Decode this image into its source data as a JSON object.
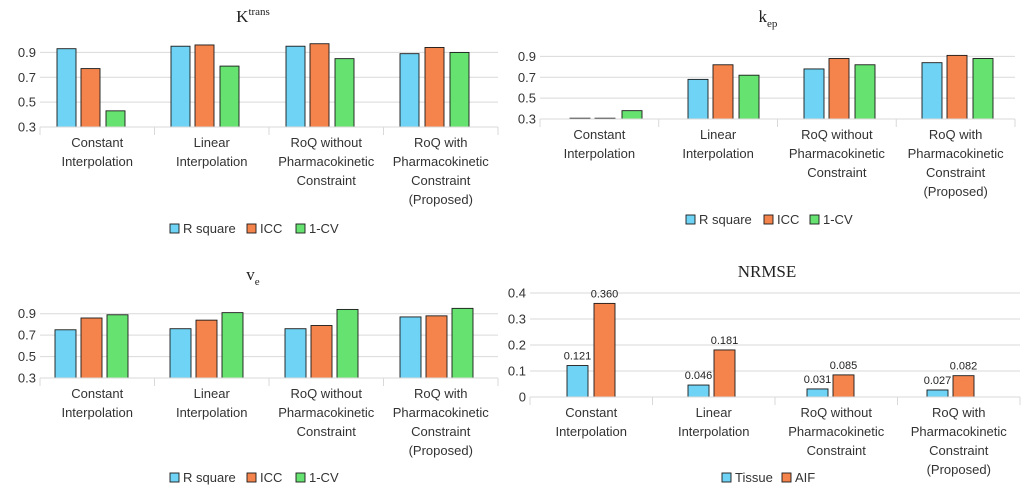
{
  "chart_data": [
    {
      "type": "bar",
      "title": "K",
      "title_sup": "trans",
      "title_sub": "",
      "categories": [
        [
          "Constant",
          "Interpolation"
        ],
        [
          "Linear",
          "Interpolation"
        ],
        [
          "RoQ without",
          "Pharmacokinetic",
          "Constraint"
        ],
        [
          "RoQ with",
          "Pharmacokinetic",
          "Constraint",
          "(Proposed)"
        ]
      ],
      "series": [
        {
          "name": "R square",
          "color": "#6ED3F5",
          "values": [
            0.93,
            0.95,
            0.95,
            0.89
          ]
        },
        {
          "name": "ICC",
          "color": "#F5844C",
          "values": [
            0.77,
            0.96,
            0.97,
            0.94
          ]
        },
        {
          "name": "1-CV",
          "color": "#66E270",
          "values": [
            0.43,
            0.79,
            0.85,
            0.9
          ]
        }
      ],
      "ylim": [
        0.3,
        1.0
      ],
      "yticks": [
        "0.9",
        "0.7",
        "0.5",
        "0.3"
      ],
      "ytick_values": [
        0.9,
        0.7,
        0.5,
        0.3
      ],
      "grid": true,
      "legend": "bottom"
    },
    {
      "type": "bar",
      "title": "k",
      "title_sup": "",
      "title_sub": "ep",
      "categories": [
        [
          "Constant",
          "Interpolation"
        ],
        [
          "Linear",
          "Interpolation"
        ],
        [
          "RoQ without",
          "Pharmacokinetic",
          "Constraint"
        ],
        [
          "RoQ with",
          "Pharmacokinetic",
          "Constraint",
          "(Proposed)"
        ]
      ],
      "series": [
        {
          "name": "R square",
          "color": "#6ED3F5",
          "values": [
            0.3,
            0.68,
            0.78,
            0.84
          ]
        },
        {
          "name": "ICC",
          "color": "#F5844C",
          "values": [
            0.3,
            0.82,
            0.88,
            0.91
          ]
        },
        {
          "name": "1-CV",
          "color": "#66E270",
          "values": [
            0.38,
            0.72,
            0.82,
            0.88
          ]
        }
      ],
      "ylim": [
        0.3,
        1.0
      ],
      "yticks": [
        "0.9",
        "0.7",
        "0.5",
        "0.3"
      ],
      "ytick_values": [
        0.9,
        0.7,
        0.5,
        0.3
      ],
      "grid": true,
      "legend": "bottom"
    },
    {
      "type": "bar",
      "title": "v",
      "title_sup": "",
      "title_sub": "e",
      "categories": [
        [
          "Constant",
          "Interpolation"
        ],
        [
          "Linear",
          "Interpolation"
        ],
        [
          "RoQ without",
          "Pharmacokinetic",
          "Constraint"
        ],
        [
          "RoQ with",
          "Pharmacokinetic",
          "Constraint",
          "(Proposed)"
        ]
      ],
      "series": [
        {
          "name": "R square",
          "color": "#6ED3F5",
          "values": [
            0.75,
            0.76,
            0.76,
            0.87
          ]
        },
        {
          "name": "ICC",
          "color": "#F5844C",
          "values": [
            0.86,
            0.84,
            0.79,
            0.88
          ]
        },
        {
          "name": "1-CV",
          "color": "#66E270",
          "values": [
            0.89,
            0.91,
            0.94,
            0.95
          ]
        }
      ],
      "ylim": [
        0.3,
        1.0
      ],
      "yticks": [
        "0.9",
        "0.7",
        "0.5",
        "0.3"
      ],
      "ytick_values": [
        0.9,
        0.7,
        0.5,
        0.3
      ],
      "grid": true,
      "legend": "bottom"
    },
    {
      "type": "bar",
      "title": "NRMSE",
      "title_sup": "",
      "title_sub": "",
      "categories": [
        [
          "Constant",
          "Interpolation"
        ],
        [
          "Linear",
          "Interpolation"
        ],
        [
          "RoQ without",
          "Pharmacokinetic",
          "Constraint"
        ],
        [
          "RoQ with",
          "Pharmacokinetic",
          "Constraint",
          "(Proposed)"
        ]
      ],
      "series": [
        {
          "name": "Tissue",
          "color": "#6ED3F5",
          "values": [
            0.121,
            0.046,
            0.031,
            0.027
          ],
          "labels": [
            "0.121",
            "0.046",
            "0.031",
            "0.027"
          ]
        },
        {
          "name": "AIF",
          "color": "#F5844C",
          "values": [
            0.36,
            0.181,
            0.085,
            0.082
          ],
          "labels": [
            "0.360",
            "0.181",
            "0.085",
            "0.082"
          ]
        }
      ],
      "ylim": [
        0,
        0.4
      ],
      "yticks": [
        "0.4",
        "0.3",
        "0.2",
        "0.1",
        "0"
      ],
      "ytick_values": [
        0.4,
        0.3,
        0.2,
        0.1,
        0
      ],
      "grid": true,
      "legend": "bottom"
    }
  ]
}
